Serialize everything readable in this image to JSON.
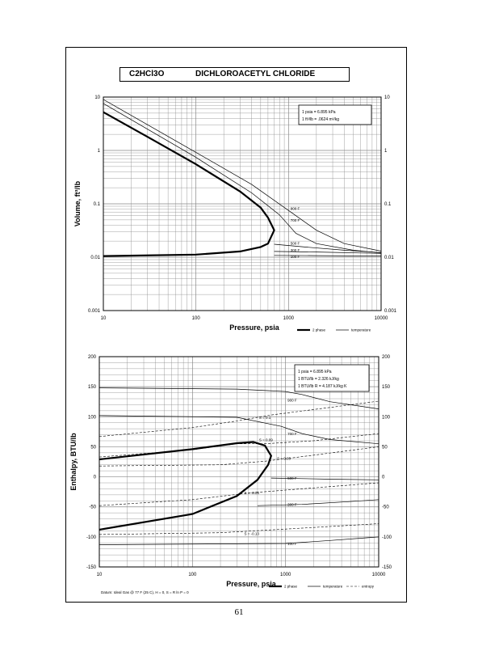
{
  "page": {
    "compound_formula": "C2HCl3O",
    "compound_name": "DICHLOROACETYL CHLORIDE",
    "page_number": "61"
  },
  "chart_data": [
    {
      "type": "line",
      "title": "",
      "xlabel": "Pressure,  psia",
      "ylabel": "Volume, ft^3/lb",
      "xscale": "log",
      "yscale": "log",
      "xlim": [
        10,
        10000
      ],
      "ylim": [
        0.001,
        10
      ],
      "x_ticks": [
        "10",
        "100",
        "1000",
        "10000"
      ],
      "y_ticks": [
        "0.001",
        "0.01",
        "0.1",
        "1",
        "10"
      ],
      "y_ticks_right": [
        "0.001",
        "0.01",
        "0.1",
        "1",
        "10"
      ],
      "grid": true,
      "info_box": [
        "1 psia = 6.895 kPa",
        "1 ft^3/lb = .0624 m^3/kg"
      ],
      "legend": {
        "position": "bottom-right",
        "entries": [
          "2 phase",
          "temperature"
        ]
      },
      "saturation_curve": {
        "vapor": [
          [
            10,
            5.2
          ],
          [
            30,
            1.8
          ],
          [
            100,
            0.55
          ],
          [
            300,
            0.17
          ],
          [
            500,
            0.085
          ],
          [
            600,
            0.055
          ],
          [
            700,
            0.032
          ]
        ],
        "liquid": [
          [
            10,
            0.0105
          ],
          [
            100,
            0.0112
          ],
          [
            300,
            0.0128
          ],
          [
            500,
            0.0155
          ],
          [
            600,
            0.018
          ],
          [
            700,
            0.032
          ]
        ]
      },
      "series": [
        {
          "name": "900 F",
          "points": [
            [
              10,
              9.0
            ],
            [
              100,
              0.92
            ],
            [
              400,
              0.23
            ],
            [
              1000,
              0.075
            ],
            [
              2000,
              0.032
            ],
            [
              4000,
              0.018
            ],
            [
              10000,
              0.013
            ]
          ]
        },
        {
          "name": "700 F",
          "points": [
            [
              10,
              7.6
            ],
            [
              100,
              0.74
            ],
            [
              400,
              0.16
            ],
            [
              800,
              0.062
            ],
            [
              1200,
              0.028
            ],
            [
              2000,
              0.018
            ],
            [
              5000,
              0.0135
            ],
            [
              10000,
              0.012
            ]
          ]
        },
        {
          "name": "500 F",
          "points": [
            [
              700,
              0.0175
            ],
            [
              1500,
              0.0155
            ],
            [
              4000,
              0.0135
            ],
            [
              10000,
              0.0122
            ]
          ]
        },
        {
          "name": "300 F",
          "points": [
            [
              700,
              0.0128
            ],
            [
              2000,
              0.0125
            ],
            [
              10000,
              0.0118
            ]
          ]
        },
        {
          "name": "100 F",
          "points": [
            [
              700,
              0.0108
            ],
            [
              2000,
              0.0107
            ],
            [
              10000,
              0.0105
            ]
          ]
        }
      ],
      "curve_labels": [
        {
          "text": "900 F",
          "x": 1050,
          "y": 0.082
        },
        {
          "text": "700 F",
          "x": 1050,
          "y": 0.05
        },
        {
          "text": "500 F",
          "x": 1050,
          "y": 0.0185
        },
        {
          "text": "300 F",
          "x": 1050,
          "y": 0.0138
        },
        {
          "text": "100 F",
          "x": 1050,
          "y": 0.0103
        }
      ]
    },
    {
      "type": "line",
      "title": "",
      "xlabel": "Pressure,  psia",
      "ylabel": "Enthalpy, BTU/lb",
      "xscale": "log",
      "yscale": "linear",
      "xlim": [
        10,
        10000
      ],
      "ylim": [
        -150,
        200
      ],
      "x_ticks": [
        "10",
        "100",
        "1000",
        "10000"
      ],
      "y_ticks": [
        "-150",
        "-100",
        "-50",
        "0",
        "50",
        "100",
        "150",
        "200"
      ],
      "y_ticks_right": [
        "-150",
        "-100",
        "-50",
        "0",
        "50",
        "100",
        "150",
        "200"
      ],
      "grid": true,
      "info_box": [
        "1 psia = 6.895 kPa",
        "1 BTU/lb = 2.326 kJ/kg",
        "1 BTU/lb R = 4.187 kJ/kg K"
      ],
      "legend": {
        "position": "bottom-right",
        "entries": [
          "2 phase",
          "temperature",
          "entropy"
        ]
      },
      "footnote": "Datum: Ideal Gas @ 77 F (25 C),  H = 0,  S = R ln P = 0",
      "saturation_curve": {
        "vapor": [
          [
            10,
            29
          ],
          [
            100,
            46
          ],
          [
            300,
            56
          ],
          [
            450,
            58
          ],
          [
            600,
            52
          ],
          [
            700,
            35
          ]
        ],
        "liquid": [
          [
            10,
            -88
          ],
          [
            100,
            -62
          ],
          [
            300,
            -32
          ],
          [
            500,
            -5
          ],
          [
            650,
            20
          ],
          [
            700,
            35
          ]
        ]
      },
      "series": [
        {
          "name": "900 F",
          "points": [
            [
              10,
              148
            ],
            [
              300,
              146
            ],
            [
              1000,
              142
            ],
            [
              1500,
              137
            ],
            [
              3000,
              125
            ],
            [
              10000,
              113
            ]
          ]
        },
        {
          "name": "700 F",
          "points": [
            [
              10,
              102
            ],
            [
              300,
              99
            ],
            [
              900,
              84
            ],
            [
              1500,
              72
            ],
            [
              3000,
              62
            ],
            [
              10000,
              55
            ]
          ]
        },
        {
          "name": "500 F",
          "points": [
            [
              700,
              -2
            ],
            [
              1500,
              -3
            ],
            [
              3000,
              -4
            ],
            [
              10000,
              -5
            ]
          ]
        },
        {
          "name": "300 F",
          "points": [
            [
              500,
              -48
            ],
            [
              1500,
              -46
            ],
            [
              4000,
              -42
            ],
            [
              10000,
              -38
            ]
          ]
        },
        {
          "name": "100 F",
          "points": [
            [
              10,
              -113
            ],
            [
              1000,
              -111
            ],
            [
              3000,
              -106
            ],
            [
              10000,
              -100
            ]
          ]
        }
      ],
      "entropy_lines": [
        {
          "name": "S = 0.1",
          "points": [
            [
              10,
              67
            ],
            [
              100,
              82
            ],
            [
              300,
              93
            ],
            [
              700,
              103
            ],
            [
              2000,
              112
            ],
            [
              10000,
              126
            ]
          ]
        },
        {
          "name": "S = 0.09",
          "points": [
            [
              10,
              33
            ],
            [
              100,
              45
            ],
            [
              300,
              55
            ],
            [
              600,
              55
            ],
            [
              2000,
              60
            ],
            [
              10000,
              72
            ]
          ]
        },
        {
          "name": "S = 0.03",
          "points": [
            [
              10,
              18
            ],
            [
              200,
              20
            ],
            [
              600,
              26
            ],
            [
              2000,
              36
            ],
            [
              10000,
              50
            ]
          ]
        },
        {
          "name": "S = -0.05",
          "points": [
            [
              10,
              -48
            ],
            [
              100,
              -38
            ],
            [
              400,
              -27
            ],
            [
              1500,
              -20
            ],
            [
              10000,
              -10
            ]
          ]
        },
        {
          "name": "S = -0.13",
          "points": [
            [
              10,
              -96
            ],
            [
              200,
              -93
            ],
            [
              1000,
              -87
            ],
            [
              10000,
              -78
            ]
          ]
        }
      ],
      "curve_labels": [
        {
          "text": "900 F",
          "x": 1050,
          "y": 128
        },
        {
          "text": "700 F",
          "x": 1050,
          "y": 72
        },
        {
          "text": "500 F",
          "x": 1050,
          "y": -2
        },
        {
          "text": "300 F",
          "x": 1050,
          "y": -46
        },
        {
          "text": "100 F",
          "x": 1050,
          "y": -111
        },
        {
          "text": "S = 0.1",
          "x": 520,
          "y": 99
        },
        {
          "text": "S = 0.09",
          "x": 520,
          "y": 62
        },
        {
          "text": "S = 0.03",
          "x": 810,
          "y": 31
        },
        {
          "text": "S = -0.05",
          "x": 360,
          "y": -26
        },
        {
          "text": "S = -0.13",
          "x": 360,
          "y": -94
        }
      ]
    }
  ]
}
